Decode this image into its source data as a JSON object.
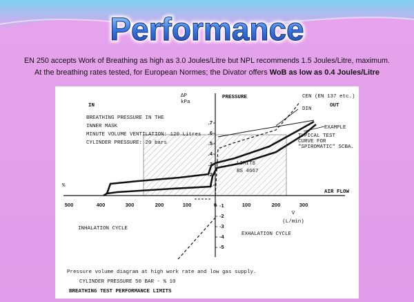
{
  "header": {
    "title": "Performance",
    "line1": "EN 250 accepts Work of Breathing as high as 3.0 Joules/Litre but NPL recommends 1.5 Joules/Litre, maximum.",
    "line2": "At the breathing rates tested, for European Normes; the Divator offers ",
    "line2_bold": "WoB as low as 0.4 Joules/Litre"
  },
  "figure": {
    "in_label": "IN",
    "out_label": "OUT",
    "dp_label": "ΔP",
    "dp_unit": "kPa",
    "pressure_label": "PRESSURE",
    "note_lines": [
      "BREATHING PRESSURE IN THE",
      "INNER MASK",
      "MINUTE VOLUME VENTILATION: 120 Litres",
      "CYLINDER PRESSURE: 20 bars"
    ],
    "cen_label": "CEN (EN 137 etc.)",
    "din_label": "DIN",
    "example_label": "EXAMPLE",
    "typical_lines": [
      "TYPICAL TEST",
      "CURVE FOR",
      "\"SPIROMATIC\" SCBA."
    ],
    "limits_lines": [
      "LIMITS",
      "BS 4667"
    ],
    "air_flow_label": "AIR FLOW",
    "percent_label": "%",
    "x_ticks_left": [
      "500",
      "400",
      "300",
      "200",
      "100",
      "0"
    ],
    "x_ticks_right": [
      "100",
      "200",
      "300"
    ],
    "y_ticks_pos": [
      ".1",
      ".2",
      ".3",
      ".4",
      ".5",
      ".6",
      ".7"
    ],
    "y_ticks_neg": [
      "-1",
      "-2",
      "-3",
      "-4",
      "-5"
    ],
    "flow_symbol": "V̇",
    "flow_unit": "(L/min)",
    "inhalation_label": "INHALATION CYCLE",
    "exhalation_label": "EXHALATION CYCLE",
    "caption": "Pressure volume diagram at high work rate and low gas supply.",
    "footer_line1": "CYLINDER PRESSURE 50 BAR - % 10",
    "footer_line2": "BREATHING TEST PERFORMANCE LIMITS"
  }
}
